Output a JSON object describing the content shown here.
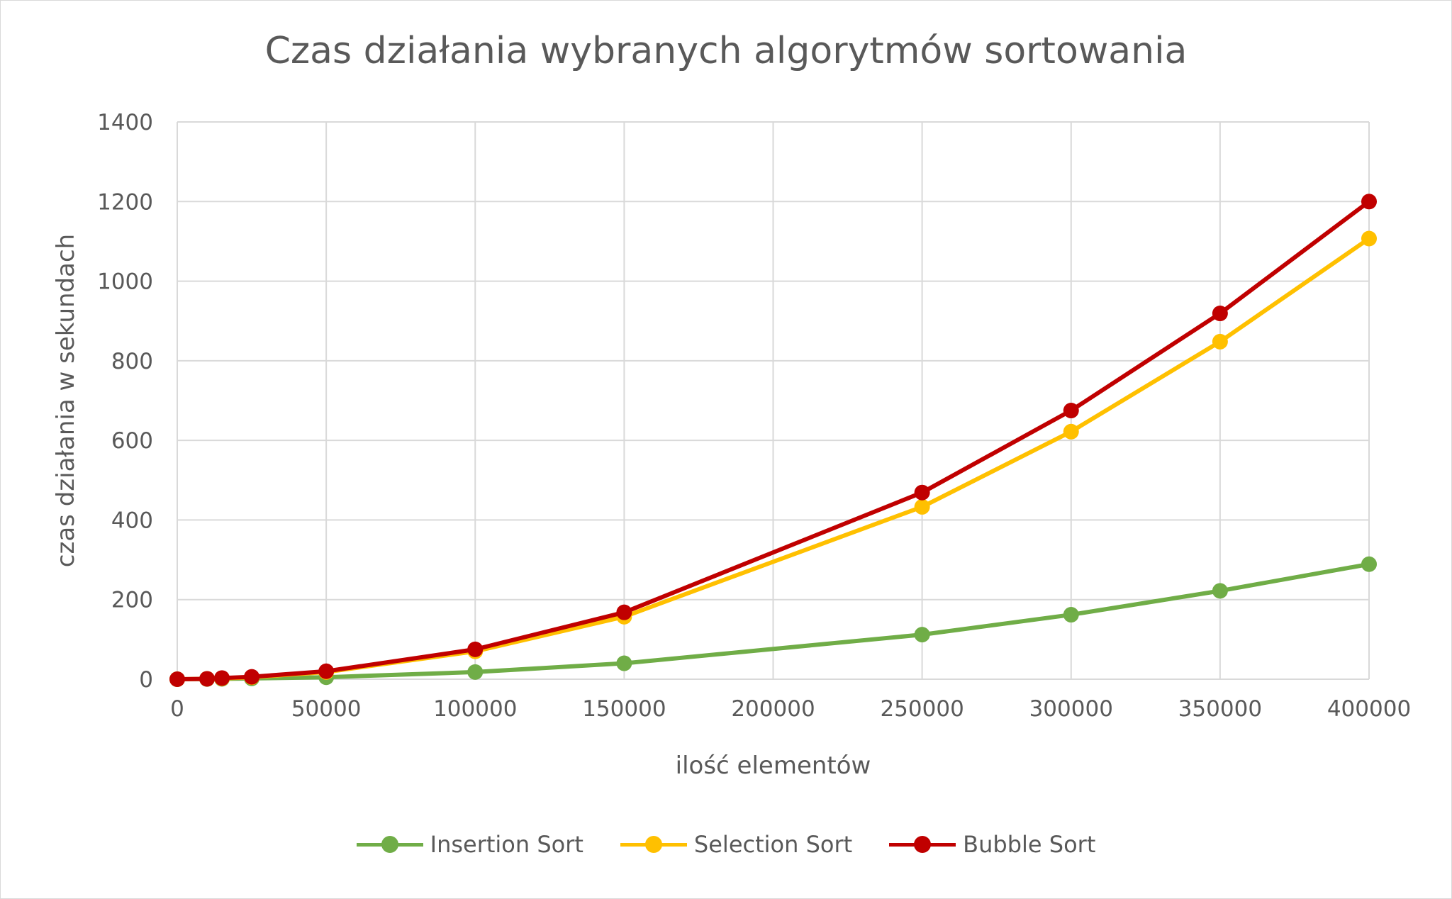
{
  "chart_data": {
    "type": "line",
    "title": "Czas działania wybranych algorytmów sortowania",
    "xlabel": "ilość elementów",
    "ylabel": "czas działania w sekundach",
    "xlim": [
      0,
      400000
    ],
    "ylim": [
      0,
      1400
    ],
    "x_ticks": [
      "0",
      "50000",
      "100000",
      "150000",
      "200000",
      "250000",
      "300000",
      "350000",
      "400000"
    ],
    "y_ticks": [
      "0",
      "200",
      "400",
      "600",
      "800",
      "1000",
      "1200",
      "1400"
    ],
    "grid": true,
    "legend_position": "bottom",
    "x": [
      0,
      10000,
      15000,
      25000,
      50000,
      100000,
      150000,
      250000,
      300000,
      350000,
      400000
    ],
    "series": [
      {
        "name": "Insertion Sort",
        "color": "#70ad47",
        "values": [
          0,
          0.5,
          1,
          2,
          5,
          18,
          40,
          112,
          162,
          222,
          289
        ]
      },
      {
        "name": "Selection Sort",
        "color": "#ffc000",
        "values": [
          0,
          1,
          2,
          5,
          18,
          70,
          157,
          433,
          622,
          848,
          1107
        ]
      },
      {
        "name": "Bubble Sort",
        "color": "#c00000",
        "values": [
          0,
          1,
          3,
          6,
          20,
          75,
          168,
          469,
          675,
          919,
          1200
        ]
      }
    ]
  }
}
